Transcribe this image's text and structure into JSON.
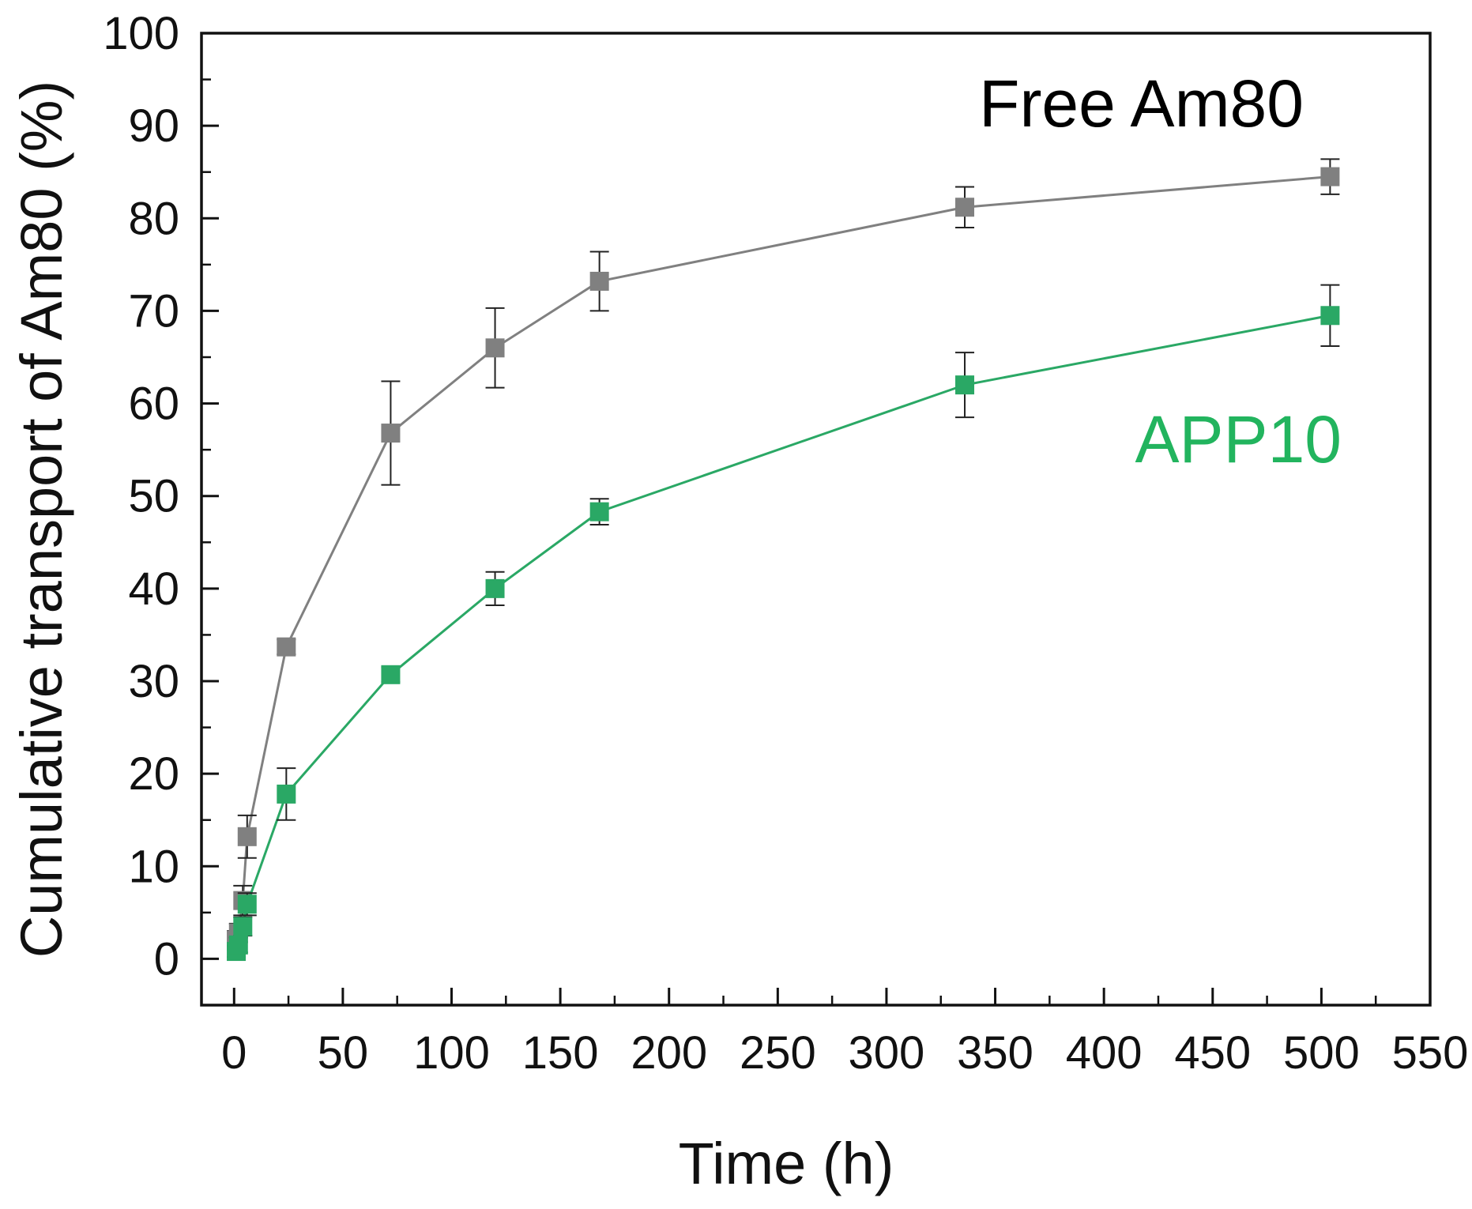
{
  "chart_data": {
    "type": "line",
    "title": "",
    "xlabel": "Time (h)",
    "ylabel": "Cumulative transport of Am80 (%)",
    "xlim": [
      -15,
      550
    ],
    "ylim": [
      -5,
      100
    ],
    "xticks": [
      0,
      50,
      100,
      150,
      200,
      250,
      300,
      350,
      400,
      450,
      500,
      550
    ],
    "yticks": [
      0,
      10,
      20,
      30,
      40,
      50,
      60,
      70,
      80,
      90,
      100
    ],
    "xtick_labels": [
      "0",
      "50",
      "100",
      "150",
      "200",
      "250",
      "300",
      "350",
      "400",
      "450",
      "500",
      "550"
    ],
    "ytick_labels": [
      "0",
      "10",
      "20",
      "30",
      "40",
      "50",
      "60",
      "70",
      "80",
      "90",
      "100"
    ],
    "x_minor_step": 25,
    "y_minor_step": 5,
    "legend": "inline labels, top-right",
    "series": [
      {
        "name": "Free Am80",
        "color": "#808080",
        "label_color": "#000000",
        "marker": "square",
        "x": [
          1,
          2,
          4,
          6,
          24,
          72,
          120,
          168,
          336,
          504
        ],
        "y": [
          2.0,
          2.8,
          6.3,
          13.2,
          33.7,
          56.8,
          66.0,
          73.2,
          81.2,
          84.5
        ],
        "err": [
          1.0,
          1.0,
          1.6,
          2.3,
          0.8,
          5.6,
          4.3,
          3.2,
          2.2,
          1.9
        ]
      },
      {
        "name": "APP10",
        "color": "#2aa865",
        "label_color": "#22b45e",
        "marker": "square",
        "x": [
          1,
          2,
          4,
          6,
          24,
          72,
          120,
          168,
          336,
          504
        ],
        "y": [
          0.8,
          1.5,
          3.5,
          5.9,
          17.8,
          30.7,
          40.0,
          48.3,
          62.0,
          69.5
        ],
        "err": [
          0.6,
          0.8,
          1.0,
          1.2,
          2.8,
          0.8,
          1.8,
          1.4,
          3.5,
          3.3
        ]
      }
    ]
  }
}
